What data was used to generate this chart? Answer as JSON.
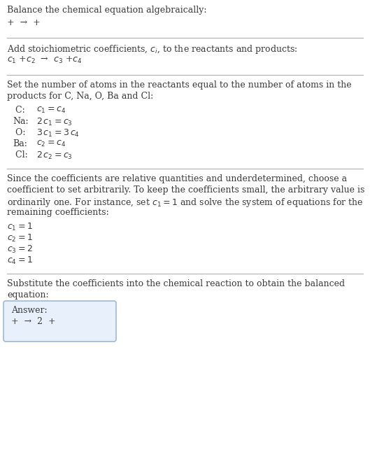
{
  "bg_color": "#ffffff",
  "text_color": "#3a3a3a",
  "line_color": "#b0b0b0",
  "title": "Balance the chemical equation algebraically:",
  "section1_line1": "+  →  +",
  "section2_header": "Add stoichiometric coefficients, $c_i$, to the reactants and products:",
  "section2_line1_parts": [
    "$c_1$  +$c_2$",
    "→",
    "$c_3$  +$c_4$"
  ],
  "section3_header1": "Set the number of atoms in the reactants equal to the number of atoms in the",
  "section3_header2": "products for C, Na, O, Ba and Cl:",
  "section3_equations": [
    [
      " C:",
      "$c_1 = c_4$"
    ],
    [
      "Na:",
      "$2\\,c_1 = c_3$"
    ],
    [
      " O:",
      "$3\\,c_1 = 3\\,c_4$"
    ],
    [
      "Ba:",
      "$c_2 = c_4$"
    ],
    [
      " Cl:",
      "$2\\,c_2 = c_3$"
    ]
  ],
  "section4_header1": "Since the coefficients are relative quantities and underdetermined, choose a",
  "section4_header2": "coefficient to set arbitrarily. To keep the coefficients small, the arbitrary value is",
  "section4_header3": "ordinarily one. For instance, set $c_1 = 1$ and solve the system of equations for the",
  "section4_header4": "remaining coefficients:",
  "section4_equations": [
    "$c_1 = 1$",
    "$c_2 = 1$",
    "$c_3 = 2$",
    "$c_4 = 1$"
  ],
  "section5_header1": "Substitute the coefficients into the chemical reaction to obtain the balanced",
  "section5_header2": "equation:",
  "answer_label": "Answer:",
  "answer_line_parts": [
    "+",
    "→",
    "2  +"
  ],
  "answer_box_facecolor": "#e8f0fb",
  "answer_box_edgecolor": "#a0b8d8",
  "font_size": 9.0,
  "line_sep": 16,
  "fig_width": 5.29,
  "fig_height": 6.43,
  "dpi": 100
}
